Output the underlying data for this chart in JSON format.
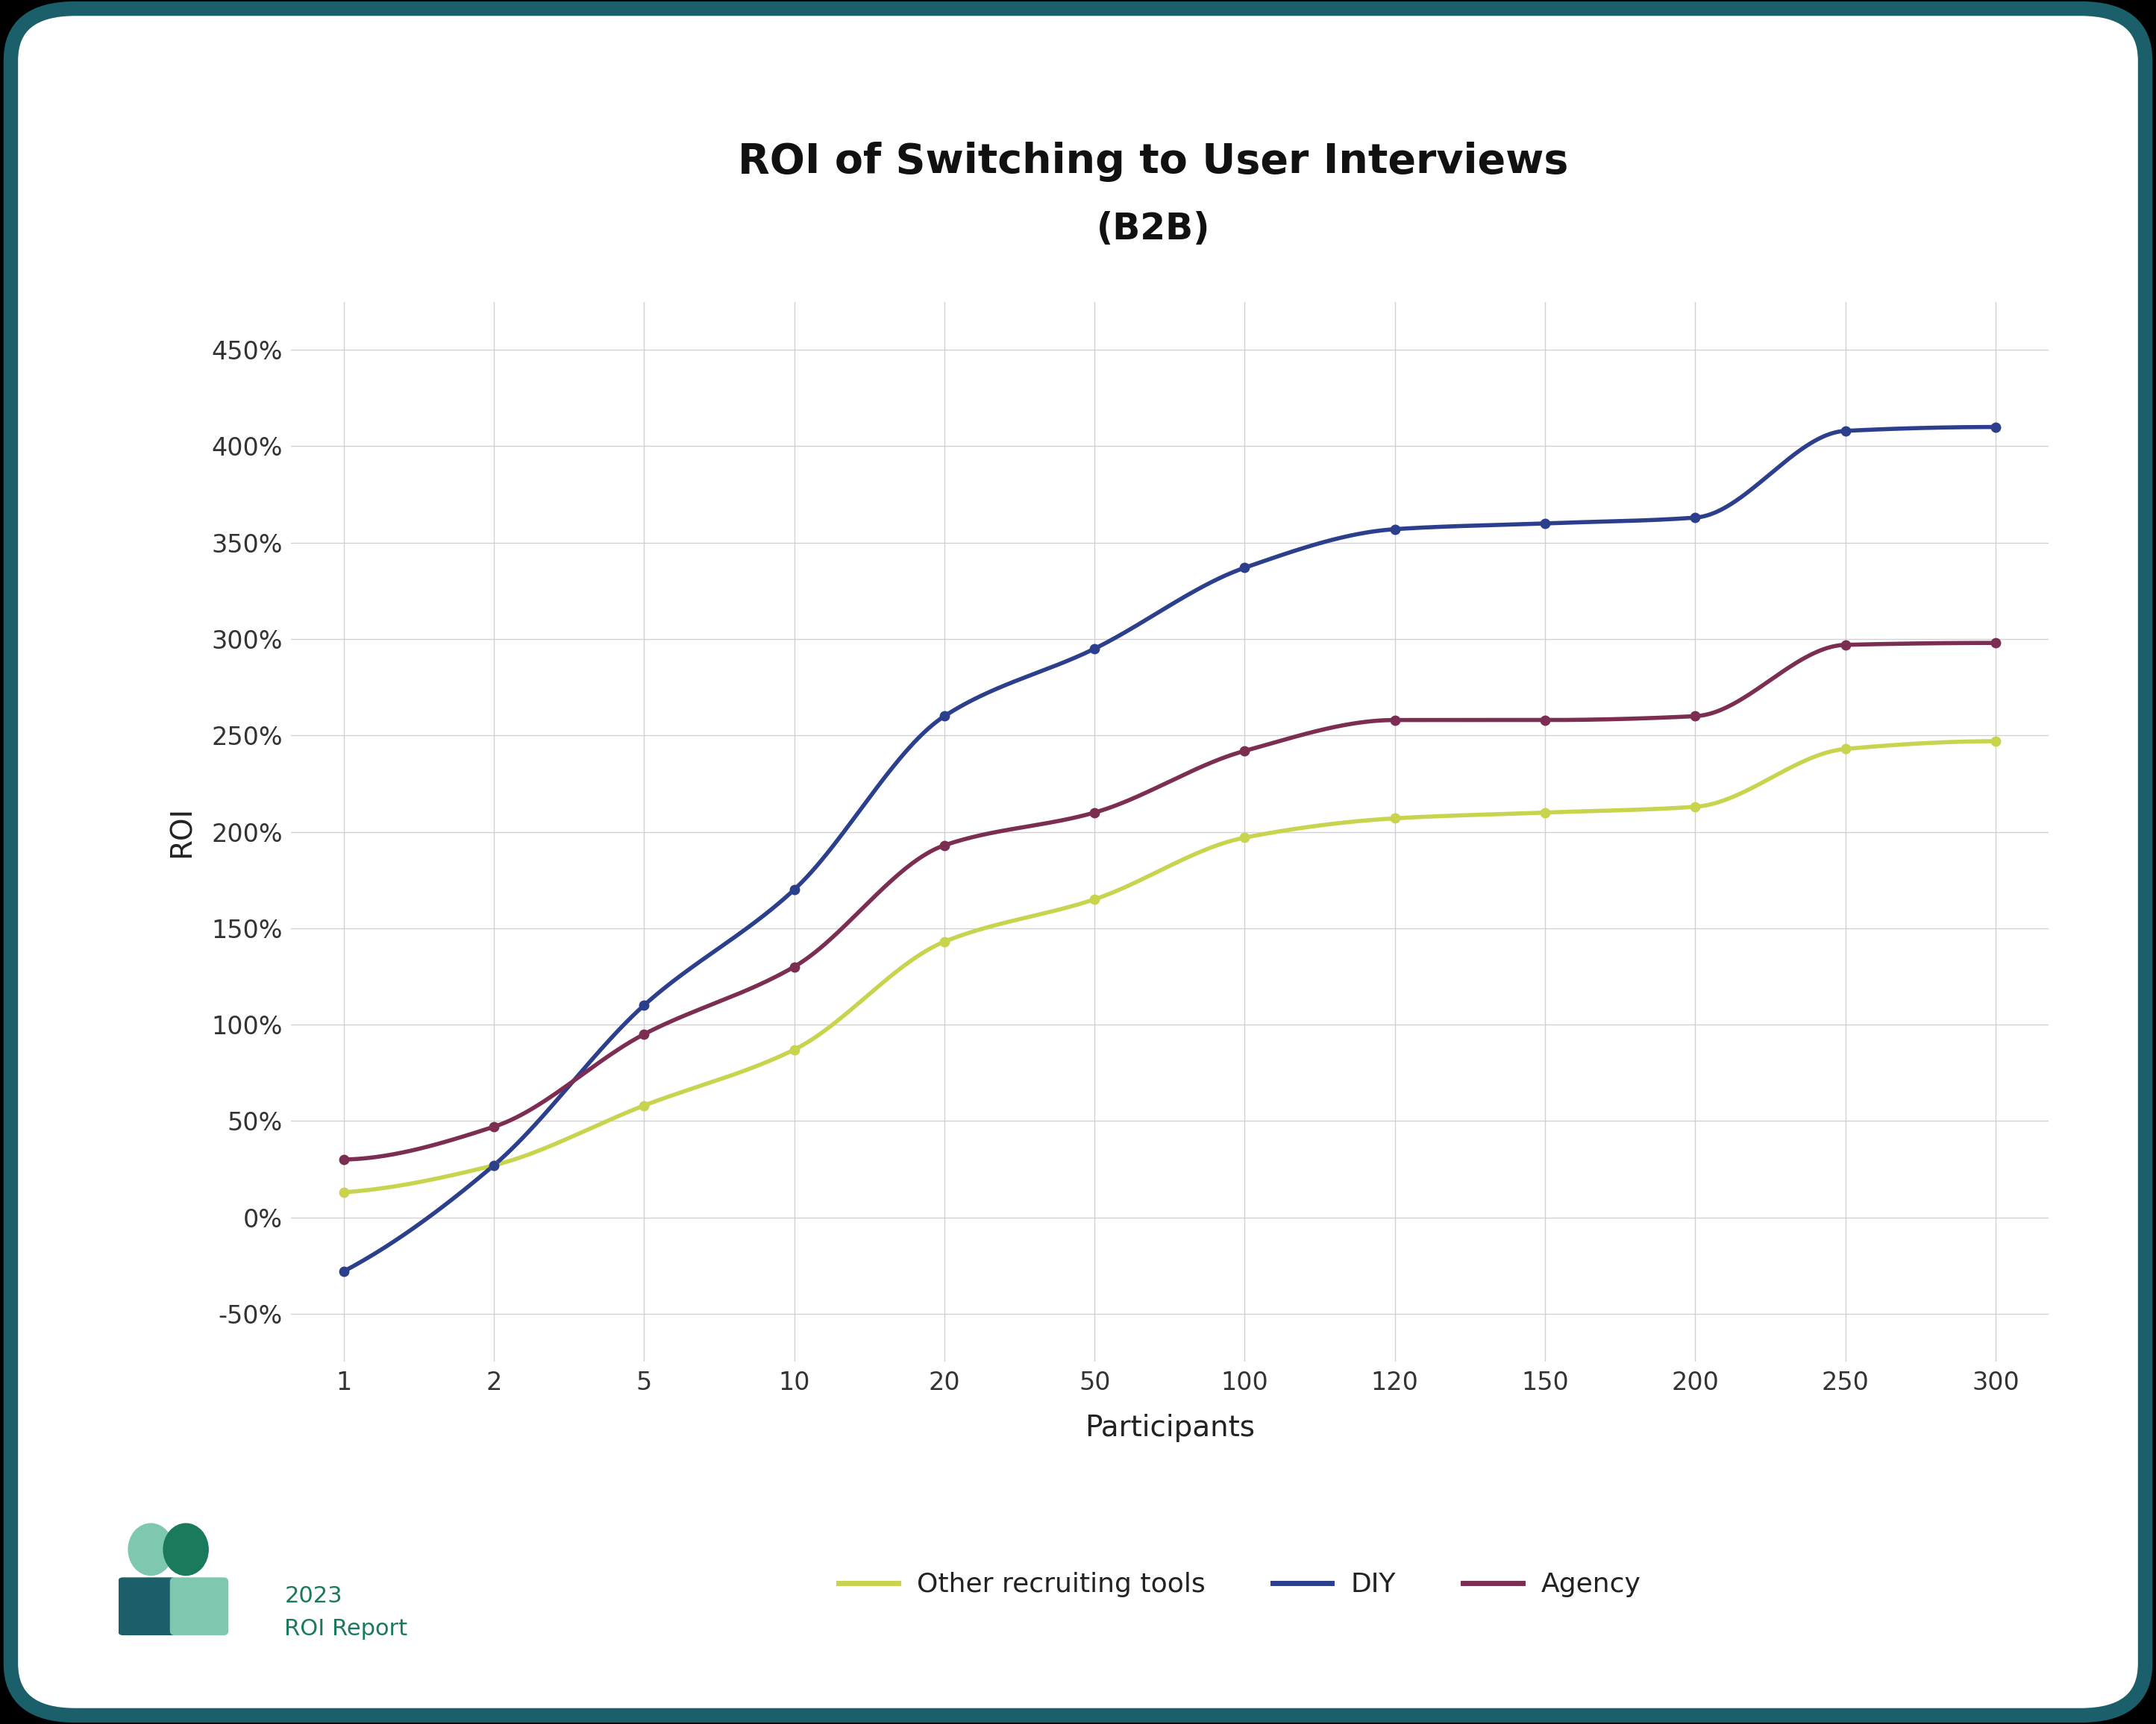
{
  "title_line1": "ROI of Switching to User Interviews",
  "title_line2": "(B2B)",
  "xlabel": "Participants",
  "ylabel": "ROI",
  "x_tick_labels": [
    "1",
    "2",
    "5",
    "10",
    "20",
    "50",
    "100",
    "120",
    "150",
    "200",
    "250",
    "300"
  ],
  "y_ticks": [
    -50,
    0,
    50,
    100,
    150,
    200,
    250,
    300,
    350,
    400,
    450
  ],
  "ylim": [
    -75,
    475
  ],
  "background_color": "#ffffff",
  "outer_bg": "#000000",
  "border_color": "#1a5f6a",
  "grid_color": "#cccccc",
  "series": [
    {
      "name": "Other recruiting tools",
      "color": "#c8d44e",
      "linewidth": 4.0,
      "x": [
        0,
        1,
        2,
        3,
        4,
        5,
        6,
        7,
        8,
        9,
        10,
        11
      ],
      "y": [
        13,
        27,
        58,
        87,
        143,
        165,
        197,
        207,
        210,
        213,
        243,
        247
      ]
    },
    {
      "name": "DIY",
      "color": "#2b3f8c",
      "linewidth": 4.0,
      "x": [
        0,
        1,
        2,
        3,
        4,
        5,
        6,
        7,
        8,
        9,
        10,
        11
      ],
      "y": [
        -28,
        27,
        110,
        170,
        260,
        295,
        337,
        357,
        360,
        363,
        408,
        410
      ]
    },
    {
      "name": "Agency",
      "color": "#7b2d52",
      "linewidth": 4.0,
      "x": [
        0,
        1,
        2,
        3,
        4,
        5,
        6,
        7,
        8,
        9,
        10,
        11
      ],
      "y": [
        30,
        47,
        95,
        130,
        193,
        210,
        242,
        258,
        258,
        260,
        297,
        298
      ]
    }
  ],
  "legend_order": [
    "Other recruiting tools",
    "DIY",
    "Agency"
  ],
  "legend_colors": [
    "#c8d44e",
    "#2b3f8c",
    "#7b2d52"
  ],
  "footer_text_line1": "2023",
  "footer_text_line2": "ROI Report",
  "footer_color": "#1a7a5e",
  "logo_oval_left_color": "#7ec8b0",
  "logo_oval_right_color": "#1a7a5e",
  "logo_rect_left_color": "#1a5f6a",
  "logo_rect_right_color": "#7ec8b0"
}
